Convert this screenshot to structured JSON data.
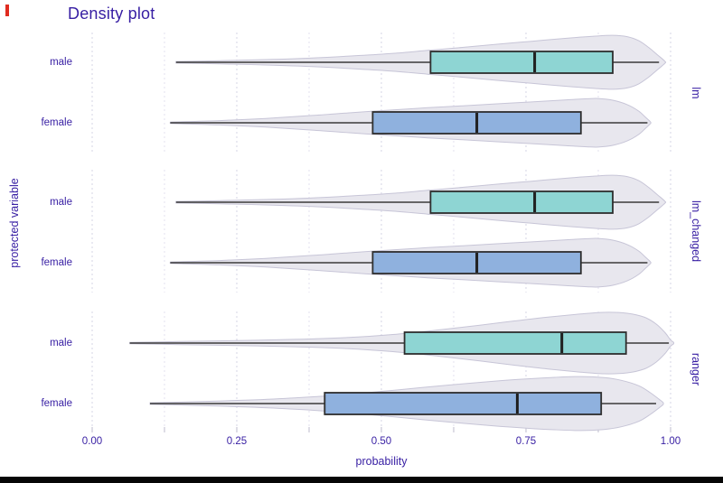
{
  "title": "Density plot",
  "colors": {
    "text_navy": "#371ea3",
    "male_fill": "#8ed5d3",
    "female_fill": "#8fb1de",
    "box_stroke": "#2e2e2e",
    "median_stroke": "#1f1f1f",
    "whisker_stroke": "#3a3a3a",
    "violin_fill": "#e8e7ee",
    "violin_stroke": "#c7c5d7",
    "grid_major": "#d6d4e6",
    "grid_minor": "#e3e1ef",
    "tick_mark": "#c8c6d6"
  },
  "chart_data": {
    "type": "violin+box",
    "title": "Density plot",
    "xlabel": "probability",
    "ylabel": "protected variable",
    "xlim": [
      0,
      1
    ],
    "grid_step": 0.125,
    "legend_position": "none",
    "x_ticks": [
      {
        "label": "0.00",
        "value": 0.0
      },
      {
        "label": "0.25",
        "value": 0.25
      },
      {
        "label": "0.50",
        "value": 0.5
      },
      {
        "label": "0.75",
        "value": 0.75
      },
      {
        "label": "1.00",
        "value": 1.0
      }
    ],
    "panels": [
      {
        "facet": "lm",
        "rows": [
          {
            "label": "male",
            "group": "male",
            "min": 0.145,
            "q1": 0.585,
            "median": 0.765,
            "q3": 0.9,
            "whisker_max": 0.98,
            "rel_height": 0.88,
            "profile": [
              [
                0.145,
                0.03
              ],
              [
                0.22,
                0.06
              ],
              [
                0.3,
                0.1
              ],
              [
                0.38,
                0.16
              ],
              [
                0.46,
                0.25
              ],
              [
                0.52,
                0.33
              ],
              [
                0.58,
                0.44
              ],
              [
                0.64,
                0.55
              ],
              [
                0.7,
                0.67
              ],
              [
                0.76,
                0.78
              ],
              [
                0.82,
                0.89
              ],
              [
                0.87,
                0.97
              ],
              [
                0.9,
                1.0
              ],
              [
                0.925,
                0.95
              ],
              [
                0.945,
                0.8
              ],
              [
                0.962,
                0.55
              ],
              [
                0.977,
                0.28
              ],
              [
                0.99,
                0.04
              ]
            ]
          },
          {
            "label": "female",
            "group": "female",
            "min": 0.135,
            "q1": 0.485,
            "median": 0.665,
            "q3": 0.845,
            "whisker_max": 0.96,
            "rel_height": 0.79,
            "profile": [
              [
                0.135,
                0.03
              ],
              [
                0.22,
                0.09
              ],
              [
                0.3,
                0.18
              ],
              [
                0.38,
                0.3
              ],
              [
                0.45,
                0.42
              ],
              [
                0.52,
                0.53
              ],
              [
                0.58,
                0.62
              ],
              [
                0.64,
                0.7
              ],
              [
                0.7,
                0.78
              ],
              [
                0.76,
                0.86
              ],
              [
                0.81,
                0.93
              ],
              [
                0.855,
                0.99
              ],
              [
                0.875,
                1.0
              ],
              [
                0.9,
                0.93
              ],
              [
                0.925,
                0.75
              ],
              [
                0.945,
                0.48
              ],
              [
                0.957,
                0.22
              ],
              [
                0.965,
                0.04
              ]
            ]
          }
        ]
      },
      {
        "facet": "lm_changed",
        "rows": [
          {
            "label": "male",
            "group": "male",
            "min": 0.145,
            "q1": 0.585,
            "median": 0.765,
            "q3": 0.9,
            "whisker_max": 0.98,
            "rel_height": 0.88,
            "profile": [
              [
                0.145,
                0.03
              ],
              [
                0.22,
                0.06
              ],
              [
                0.3,
                0.1
              ],
              [
                0.38,
                0.16
              ],
              [
                0.46,
                0.25
              ],
              [
                0.52,
                0.33
              ],
              [
                0.58,
                0.44
              ],
              [
                0.64,
                0.55
              ],
              [
                0.7,
                0.67
              ],
              [
                0.76,
                0.78
              ],
              [
                0.82,
                0.89
              ],
              [
                0.87,
                0.97
              ],
              [
                0.9,
                1.0
              ],
              [
                0.925,
                0.95
              ],
              [
                0.945,
                0.8
              ],
              [
                0.962,
                0.55
              ],
              [
                0.977,
                0.28
              ],
              [
                0.99,
                0.04
              ]
            ]
          },
          {
            "label": "female",
            "group": "female",
            "min": 0.135,
            "q1": 0.485,
            "median": 0.665,
            "q3": 0.845,
            "whisker_max": 0.96,
            "rel_height": 0.79,
            "profile": [
              [
                0.135,
                0.03
              ],
              [
                0.22,
                0.09
              ],
              [
                0.3,
                0.18
              ],
              [
                0.38,
                0.3
              ],
              [
                0.45,
                0.42
              ],
              [
                0.52,
                0.53
              ],
              [
                0.58,
                0.62
              ],
              [
                0.64,
                0.7
              ],
              [
                0.7,
                0.78
              ],
              [
                0.76,
                0.86
              ],
              [
                0.81,
                0.93
              ],
              [
                0.855,
                0.99
              ],
              [
                0.875,
                1.0
              ],
              [
                0.9,
                0.93
              ],
              [
                0.925,
                0.75
              ],
              [
                0.945,
                0.48
              ],
              [
                0.957,
                0.22
              ],
              [
                0.965,
                0.04
              ]
            ]
          }
        ]
      },
      {
        "facet": "ranger",
        "rows": [
          {
            "label": "male",
            "group": "male",
            "min": 0.065,
            "q1": 0.54,
            "median": 0.812,
            "q3": 0.923,
            "whisker_max": 0.997,
            "rel_height": 1.0,
            "profile": [
              [
                0.065,
                0.02
              ],
              [
                0.15,
                0.05
              ],
              [
                0.25,
                0.08
              ],
              [
                0.35,
                0.12
              ],
              [
                0.44,
                0.18
              ],
              [
                0.52,
                0.28
              ],
              [
                0.6,
                0.43
              ],
              [
                0.67,
                0.58
              ],
              [
                0.73,
                0.72
              ],
              [
                0.79,
                0.85
              ],
              [
                0.84,
                0.94
              ],
              [
                0.885,
                1.0
              ],
              [
                0.925,
                0.97
              ],
              [
                0.955,
                0.84
              ],
              [
                0.975,
                0.62
              ],
              [
                0.99,
                0.35
              ],
              [
                1.0,
                0.1
              ],
              [
                1.005,
                0.03
              ]
            ]
          },
          {
            "label": "female",
            "group": "female",
            "min": 0.1,
            "q1": 0.402,
            "median": 0.735,
            "q3": 0.88,
            "whisker_max": 0.975,
            "rel_height": 0.88,
            "profile": [
              [
                0.1,
                0.03
              ],
              [
                0.18,
                0.07
              ],
              [
                0.27,
                0.13
              ],
              [
                0.35,
                0.21
              ],
              [
                0.43,
                0.32
              ],
              [
                0.5,
                0.45
              ],
              [
                0.57,
                0.59
              ],
              [
                0.63,
                0.71
              ],
              [
                0.69,
                0.82
              ],
              [
                0.75,
                0.91
              ],
              [
                0.8,
                0.97
              ],
              [
                0.845,
                1.0
              ],
              [
                0.885,
                0.96
              ],
              [
                0.915,
                0.86
              ],
              [
                0.945,
                0.66
              ],
              [
                0.965,
                0.4
              ],
              [
                0.98,
                0.16
              ],
              [
                0.987,
                0.04
              ]
            ]
          }
        ]
      }
    ]
  }
}
